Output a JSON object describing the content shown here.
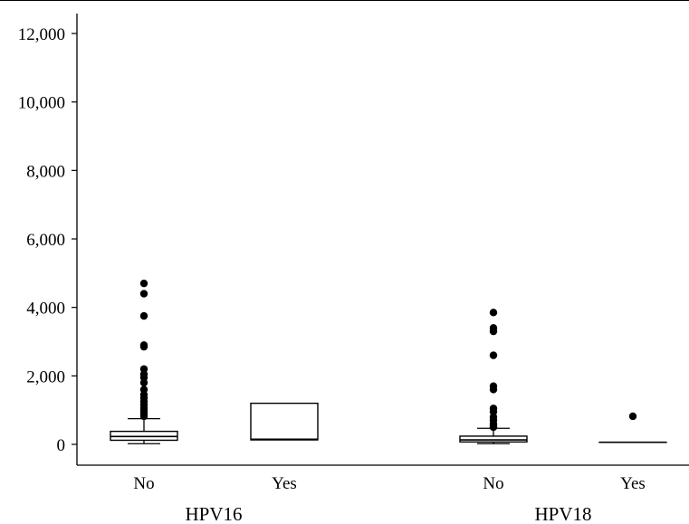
{
  "chart_data": {
    "type": "box",
    "title": "",
    "xlabel": "",
    "ylabel": "",
    "ylim": [
      -600,
      12600
    ],
    "y_ticks": [
      {
        "value": 0,
        "label": "0"
      },
      {
        "value": 2000,
        "label": "2,000"
      },
      {
        "value": 4000,
        "label": "4,000"
      },
      {
        "value": 6000,
        "label": "6,000"
      },
      {
        "value": 8000,
        "label": "8,000"
      },
      {
        "value": 10000,
        "label": "10,000"
      },
      {
        "value": 12000,
        "label": "12,000"
      }
    ],
    "groups": [
      {
        "label": "HPV16",
        "boxes": [
          {
            "category": "No",
            "whisker_low": 20,
            "q1": 120,
            "median": 230,
            "q3": 380,
            "whisker_high": 750,
            "outliers": [
              820,
              900,
              980,
              1060,
              1150,
              1250,
              1350,
              1450,
              1600,
              1800,
              1950,
              2050,
              2200,
              2850,
              2900,
              3750,
              4400,
              4700
            ]
          },
          {
            "category": "Yes",
            "whisker_low": 130,
            "q1": 130,
            "median": 150,
            "q3": 1200,
            "whisker_high": 1200,
            "outliers": []
          }
        ]
      },
      {
        "label": "HPV18",
        "boxes": [
          {
            "category": "No",
            "whisker_low": 20,
            "q1": 70,
            "median": 130,
            "q3": 240,
            "whisker_high": 470,
            "outliers": [
              500,
              550,
              600,
              700,
              800,
              950,
              1050,
              1600,
              1700,
              2600,
              3300,
              3400,
              3850
            ]
          },
          {
            "category": "Yes",
            "whisker_low": 60,
            "q1": 60,
            "median": 60,
            "q3": 60,
            "whisker_high": 60,
            "outliers": [
              820
            ]
          }
        ]
      }
    ]
  }
}
